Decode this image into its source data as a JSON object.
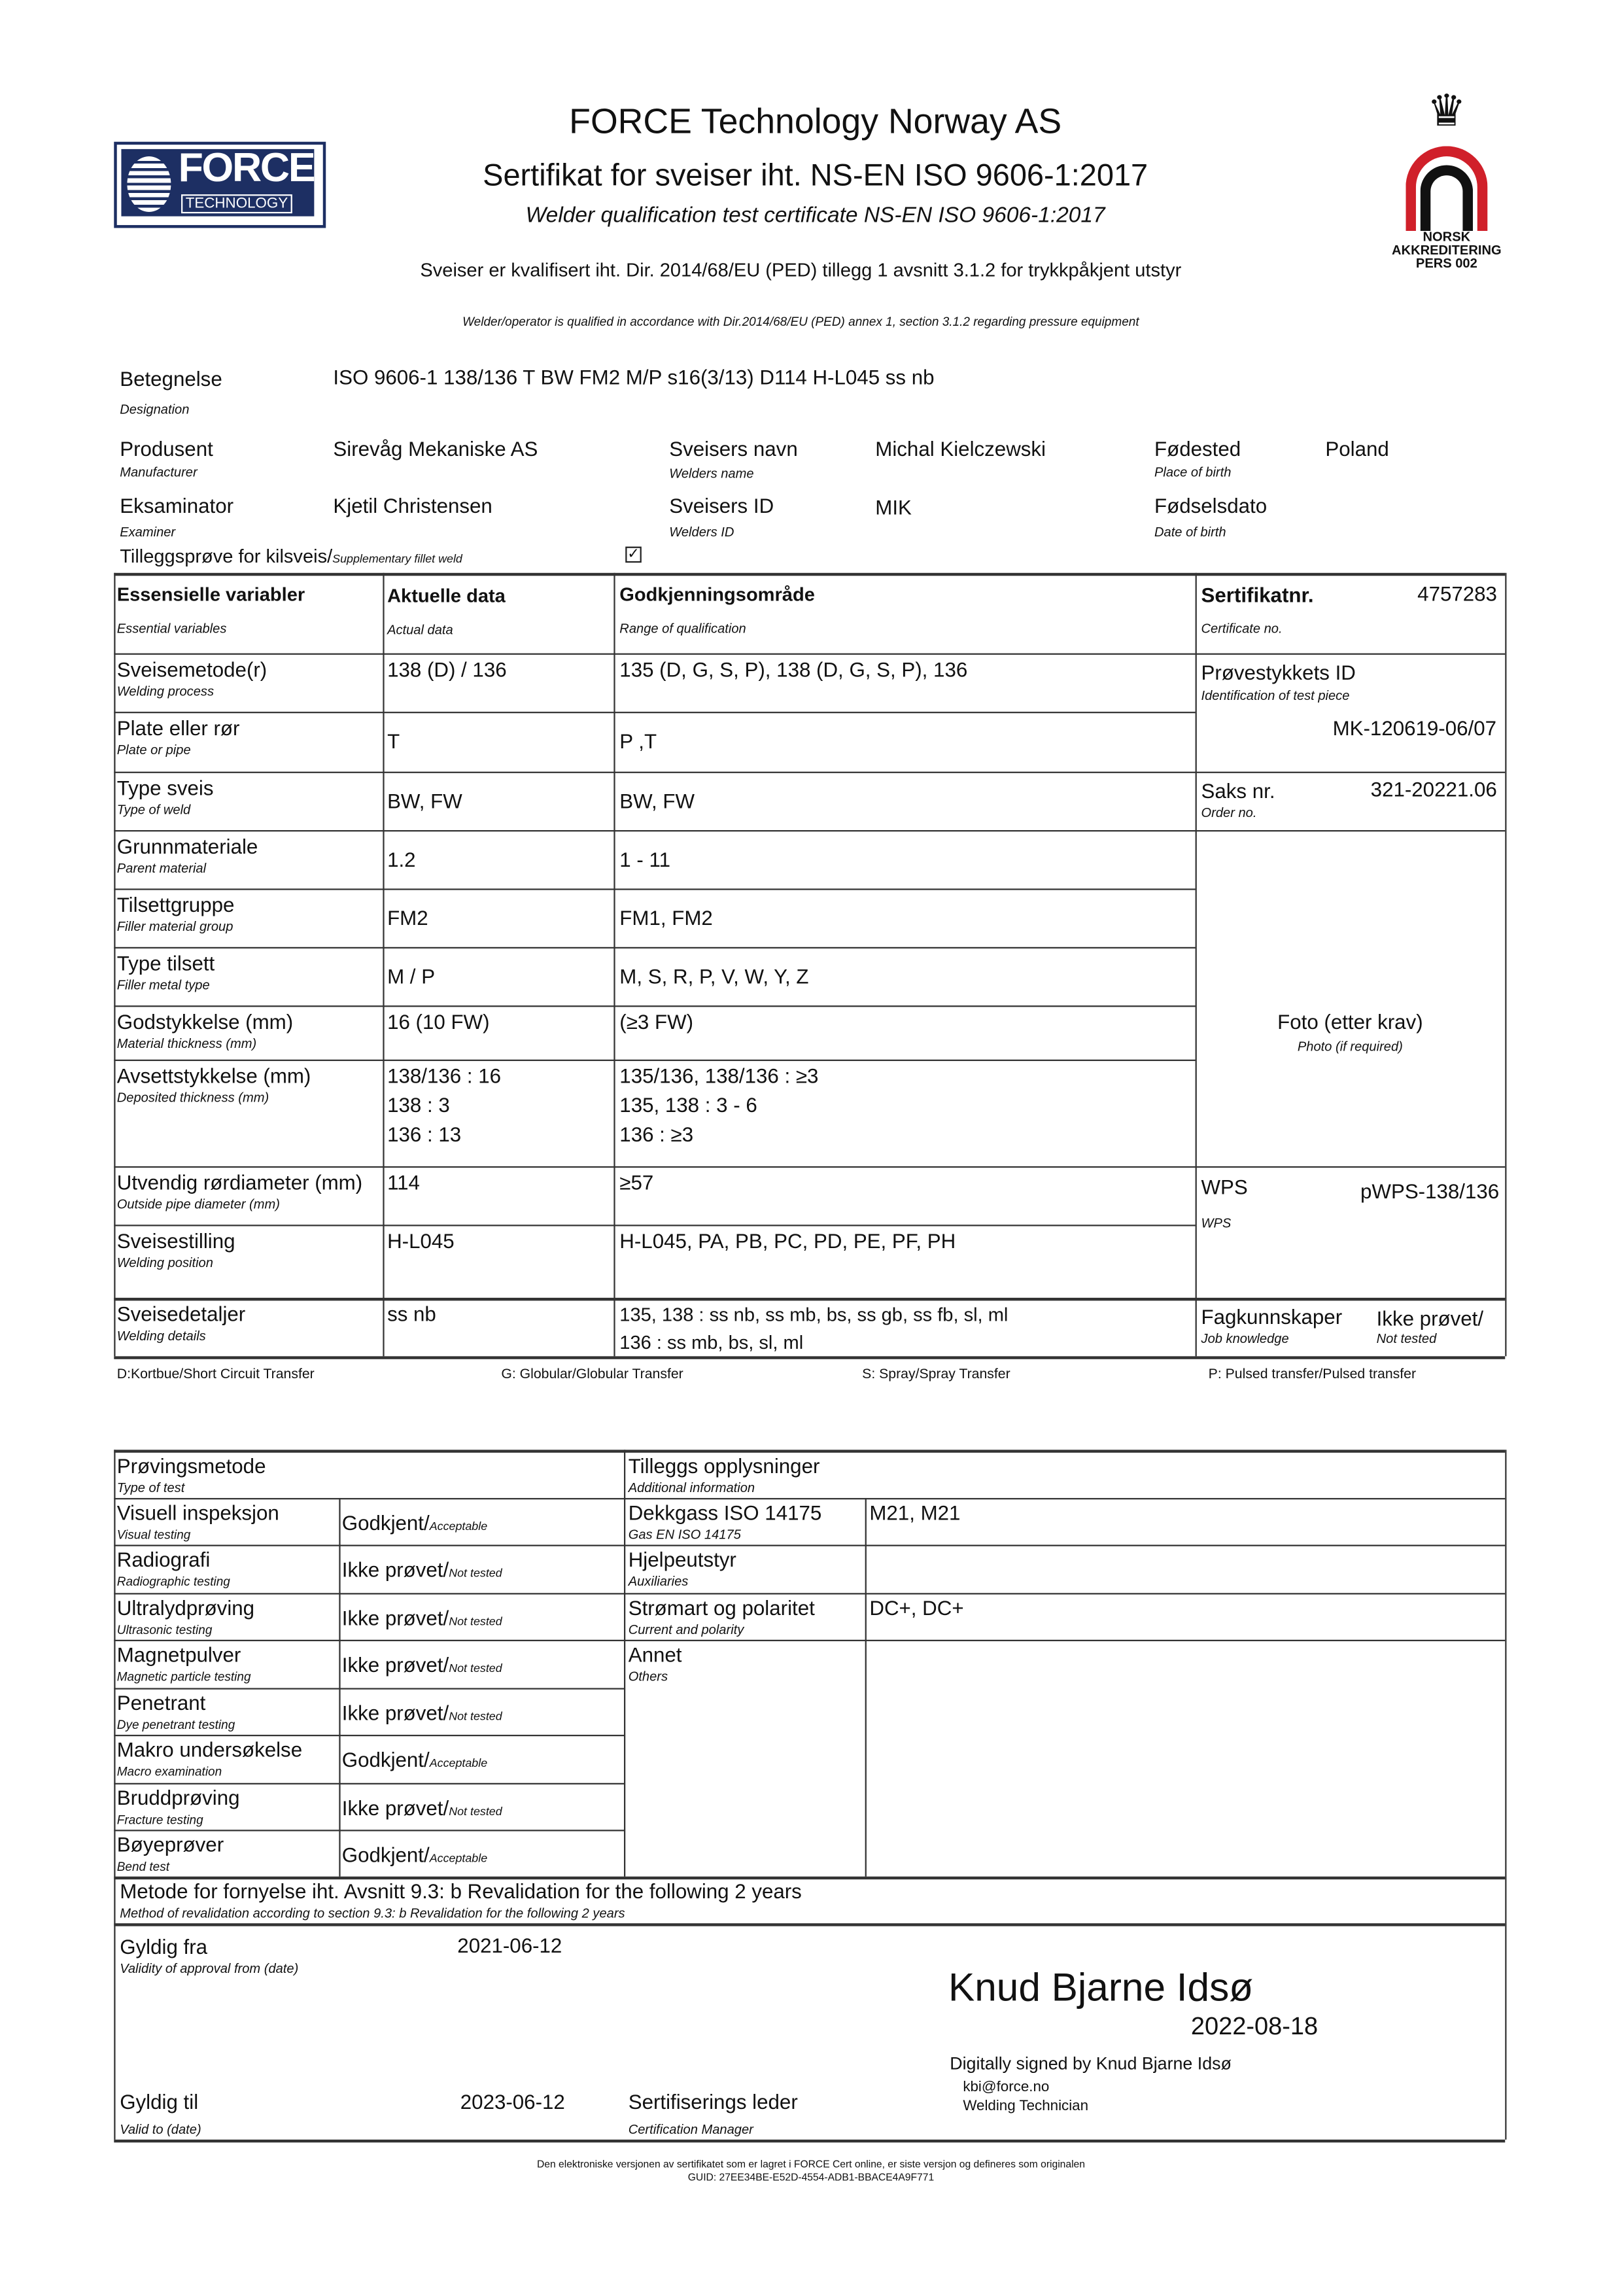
{
  "header": {
    "company": "FORCE Technology Norway AS",
    "title": "Sertifikat for sveiser iht. NS-EN ISO 9606-1:2017",
    "subtitle": "Welder qualification test certificate NS-EN ISO 9606-1:2017",
    "ped_no": "Sveiser er kvalifisert iht. Dir. 2014/68/EU (PED) tillegg 1 avsnitt 3.1.2 for trykkpåkjent utstyr",
    "ped_en": "Welder/operator is qualified in accordance with Dir.2014/68/EU (PED) annex 1, section 3.1.2 regarding pressure equipment",
    "logo_text": [
      "FORCE",
      "TECHNOLOGY"
    ],
    "accreditation": [
      "NORSK",
      "AKKREDITERING",
      "PERS 002"
    ]
  },
  "info": {
    "designation": {
      "label": "Betegnelse",
      "en": "Designation",
      "value": "ISO 9606-1 138/136 T BW FM2 M/P s16(3/13) D114 H-L045 ss nb"
    },
    "manufacturer": {
      "label": "Produsent",
      "en": "Manufacturer",
      "value": "Sirevåg Mekaniske AS"
    },
    "welder_name": {
      "label": "Sveisers navn",
      "en": "Welders name",
      "value": "Michal Kielczewski"
    },
    "birthplace": {
      "label": "Fødested",
      "en": "Place of birth",
      "value": "Poland"
    },
    "examiner": {
      "label": "Eksaminator",
      "en": "Examiner",
      "value": "Kjetil Christensen"
    },
    "welder_id": {
      "label": "Sveisers ID",
      "en": "Welders ID",
      "value": "MIK"
    },
    "birthdate": {
      "label": "Fødselsdato",
      "en": "Date of birth",
      "value": ""
    },
    "fillet": {
      "label": "Tilleggsprøve for kilsveis/",
      "en": "Supplementary fillet weld",
      "checked": true
    }
  },
  "variables": {
    "head": {
      "c1": "Essensielle variabler",
      "c1en": "Essential variables",
      "c2": "Aktuelle data",
      "c2en": "Actual data",
      "c3": "Godkjenningsområde",
      "c3en": "Range of qualification"
    },
    "rows": [
      {
        "label": "Sveisemetode(r)",
        "en": "Welding process",
        "actual": [
          "138 (D) / 136"
        ],
        "range": [
          "135 (D, G, S, P), 138 (D, G, S, P), 136"
        ]
      },
      {
        "label": "Plate eller rør",
        "en": "Plate or pipe",
        "actual": [
          "T"
        ],
        "range": [
          "P ,T"
        ]
      },
      {
        "label": "Type sveis",
        "en": "Type of weld",
        "actual": [
          "BW, FW"
        ],
        "range": [
          "BW, FW"
        ]
      },
      {
        "label": "Grunnmateriale",
        "en": "Parent material",
        "actual": [
          "1.2"
        ],
        "range": [
          "1 - 11"
        ]
      },
      {
        "label": "Tilsettgruppe",
        "en": "Filler material group",
        "actual": [
          "FM2"
        ],
        "range": [
          "FM1, FM2"
        ]
      },
      {
        "label": "Type tilsett",
        "en": "Filler metal type",
        "actual": [
          "M / P"
        ],
        "range": [
          "M, S, R, P, V, W, Y, Z"
        ]
      },
      {
        "label": "Godstykkelse (mm)",
        "en": "Material thickness (mm)",
        "actual": [
          "16 (10 FW)"
        ],
        "range": [
          "(≥3 FW)"
        ]
      },
      {
        "label": "Avsettstykkelse (mm)",
        "en": "Deposited thickness (mm)",
        "actual": [
          "138/136 : 16",
          "138 : 3",
          "136 : 13"
        ],
        "range": [
          "135/136, 138/136 : ≥3",
          "135, 138 : 3 - 6",
          "136 : ≥3"
        ]
      },
      {
        "label": "Utvendig rørdiameter (mm)",
        "en": "Outside pipe diameter (mm)",
        "actual": [
          "114"
        ],
        "range": [
          "≥57"
        ]
      },
      {
        "label": "Sveisestilling",
        "en": "Welding position",
        "actual": [
          "H-L045"
        ],
        "range": [
          "H-L045, PA, PB, PC, PD, PE, PF, PH"
        ]
      },
      {
        "label": "Sveisedetaljer",
        "en": "Welding details",
        "actual": [
          "ss nb"
        ],
        "range": [
          "135, 138 : ss nb, ss mb, bs, ss gb, ss fb, sl, ml",
          "136 : ss mb, bs, sl, ml"
        ]
      }
    ],
    "side": {
      "cert_label": "Sertifikatnr.",
      "cert_en": "Certificate no.",
      "cert_no": "4757283",
      "piece_label": "Prøvestykkets ID",
      "piece_en": "Identification of test piece",
      "piece_id": "MK-120619-06/07",
      "order_label": "Saks nr.",
      "order_en": "Order no.",
      "order_no": "321-20221.06",
      "photo_label": "Foto (etter krav)",
      "photo_en": "Photo (if required)",
      "wps_label": "WPS",
      "wps_en": "WPS",
      "wps": "pWPS-138/136",
      "job_label": "Fagkunnskaper",
      "job_en": "Job knowledge",
      "job_value": "Ikke prøvet/",
      "job_value_en": "Not tested"
    },
    "legend": [
      "D:Kortbue/Short Circuit Transfer",
      "G: Globular/Globular Transfer",
      "S: Spray/Spray Transfer",
      "P: Pulsed transfer/Pulsed transfer"
    ]
  },
  "tests": {
    "head": "Prøvingsmetode",
    "head_en": "Type of test",
    "rows": [
      {
        "label": "Visuell inspeksjon",
        "en": "Visual testing",
        "result": "Godkjent/",
        "result_en": "Acceptable"
      },
      {
        "label": "Radiografi",
        "en": "Radiographic testing",
        "result": "Ikke prøvet/",
        "result_en": "Not tested"
      },
      {
        "label": "Ultralydprøving",
        "en": "Ultrasonic testing",
        "result": "Ikke prøvet/",
        "result_en": "Not tested"
      },
      {
        "label": "Magnetpulver",
        "en": "Magnetic particle testing",
        "result": "Ikke prøvet/",
        "result_en": "Not tested"
      },
      {
        "label": "Penetrant",
        "en": "Dye penetrant testing",
        "result": "Ikke prøvet/",
        "result_en": "Not tested"
      },
      {
        "label": "Makro undersøkelse",
        "en": "Macro examination",
        "result": "Godkjent/",
        "result_en": "Acceptable"
      },
      {
        "label": "Bruddprøving",
        "en": "Fracture testing",
        "result": "Ikke prøvet/",
        "result_en": "Not tested"
      },
      {
        "label": "Bøyeprøver",
        "en": "Bend test",
        "result": "Godkjent/",
        "result_en": "Acceptable"
      }
    ],
    "add_head": "Tilleggs opplysninger",
    "add_head_en": "Additional information",
    "additional": [
      {
        "label": "Dekkgass ISO 14175",
        "en": "Gas EN ISO 14175",
        "value": "M21, M21"
      },
      {
        "label": "Hjelpeutstyr",
        "en": "Auxiliaries",
        "value": ""
      },
      {
        "label": "Strømart og polaritet",
        "en": "Current and polarity",
        "value": "DC+, DC+"
      },
      {
        "label": "Annet",
        "en": "Others",
        "value": ""
      }
    ],
    "revalidation": "Metode for fornyelse iht. Avsnitt 9.3: b Revalidation for the following 2 years",
    "revalidation_en": "Method of revalidation according to section 9.3: b Revalidation for the following 2 years"
  },
  "validity": {
    "from_label": "Gyldig fra",
    "from_en": "Validity of approval from (date)",
    "from": "2021-06-12",
    "to_label": "Gyldig til",
    "to_en": "Valid to (date)",
    "to": "2023-06-12",
    "manager_label": "Sertifiserings leder",
    "manager_en": "Certification Manager",
    "signer": "Knud Bjarne Idsø",
    "sign_date": "2022-08-18",
    "signed_by": "Digitally signed by Knud Bjarne Idsø",
    "email": "kbi@force.no",
    "role": "Welding Technician"
  },
  "footer": {
    "note": "Den elektroniske versjonen av sertifikatet som er lagret i FORCE Cert online, er siste versjon og defineres som originalen",
    "guid": "GUID: 27EE34BE-E52D-4554-ADB1-BBACE4A9F771"
  }
}
